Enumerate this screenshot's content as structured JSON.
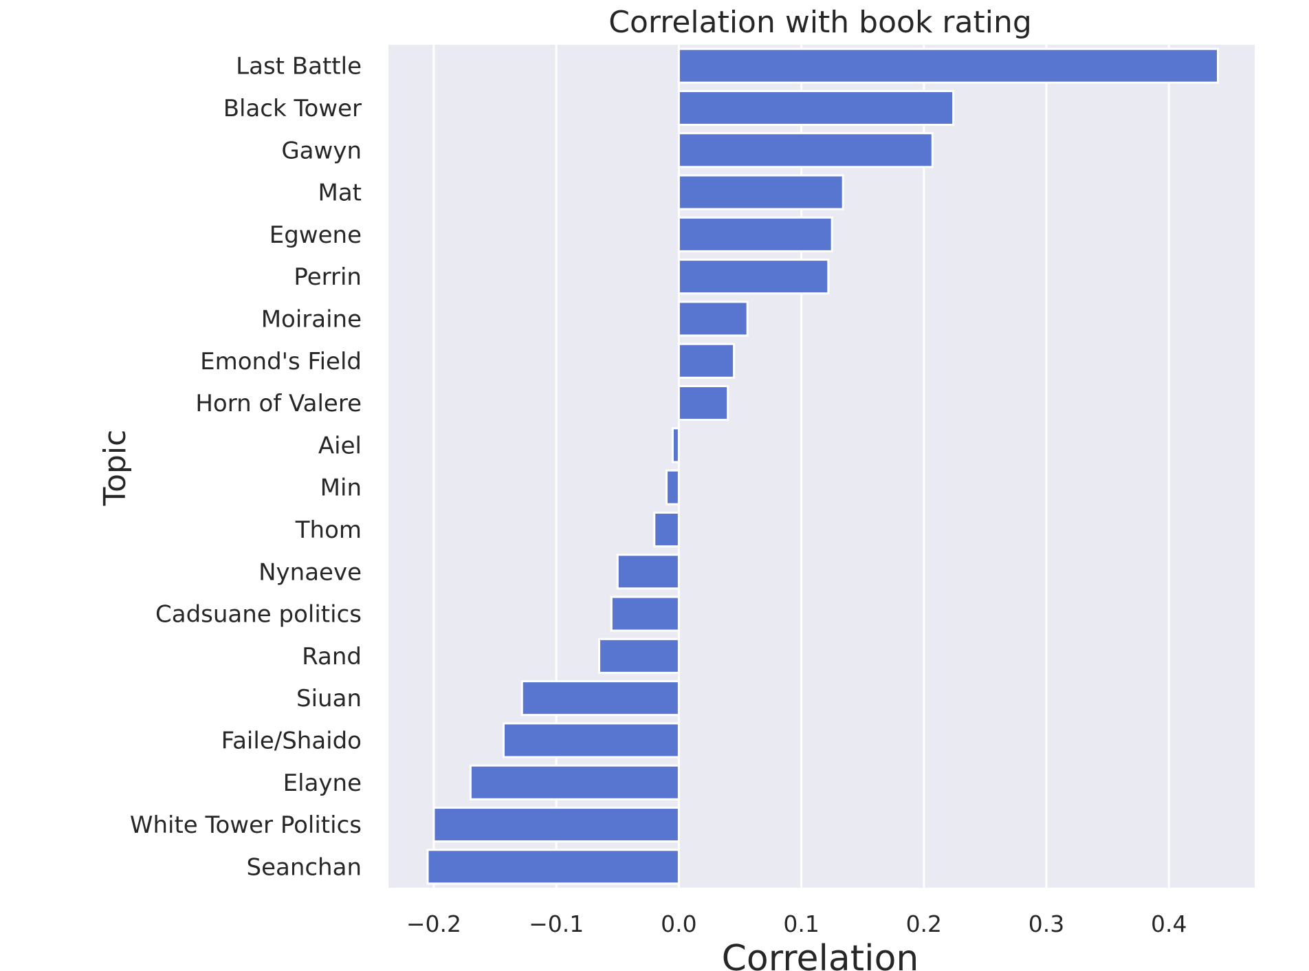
{
  "chart_data": {
    "type": "bar",
    "orientation": "horizontal",
    "title": "Correlation with book rating",
    "xlabel": "Correlation",
    "ylabel": "Topic",
    "xlim": [
      -0.237,
      0.47
    ],
    "xticks": [
      -0.2,
      -0.1,
      0.0,
      0.1,
      0.2,
      0.3,
      0.4
    ],
    "xtick_labels": [
      "−0.2",
      "−0.1",
      "0.0",
      "0.1",
      "0.2",
      "0.3",
      "0.4"
    ],
    "grid": true,
    "bar_color": "#5875d0",
    "background_color": "#eaeaf2",
    "categories": [
      "Last Battle",
      "Black Tower",
      "Gawyn",
      "Mat",
      "Egwene",
      "Perrin",
      "Moiraine",
      "Emond's Field",
      "Horn of Valere",
      "Aiel",
      "Min",
      "Thom",
      "Nynaeve",
      "Cadsuane politics",
      "Rand",
      "Siuan",
      "Faile/Shaido",
      "Elayne",
      "White Tower Politics",
      "Seanchan"
    ],
    "values": [
      0.44,
      0.224,
      0.207,
      0.134,
      0.125,
      0.122,
      0.056,
      0.045,
      0.04,
      -0.005,
      -0.01,
      -0.02,
      -0.05,
      -0.055,
      -0.065,
      -0.128,
      -0.143,
      -0.17,
      -0.2,
      -0.205
    ]
  }
}
